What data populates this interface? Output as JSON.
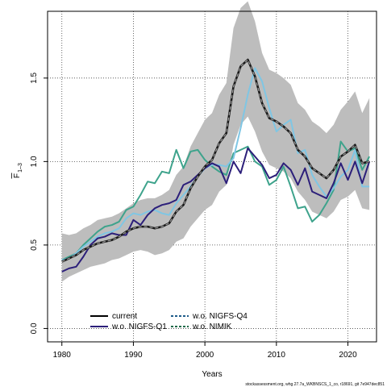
{
  "chart_data": {
    "type": "line",
    "xlabel": "Years",
    "ylabel_main": "F",
    "ylabel_sub": "1–3",
    "xlim": [
      1978,
      2024
    ],
    "ylim": [
      -0.08,
      1.9
    ],
    "x_ticks": [
      1980,
      1990,
      2000,
      2010,
      2020
    ],
    "y_ticks": [
      0.0,
      0.5,
      1.0,
      1.5
    ],
    "y_tick_labels": [
      "0.0",
      "0.5",
      "1.0",
      "1.5"
    ],
    "grid": "dotted",
    "legend": {
      "placement": "bottom-left",
      "entries": [
        {
          "key": "current",
          "label": "current",
          "color": "#000000",
          "dash": "solid"
        },
        {
          "key": "q1",
          "label": "w.o. NIGFS-Q1",
          "color": "#2c1f7a",
          "dash": "solid"
        },
        {
          "key": "q4",
          "label": "w.o. NIGFS-Q4",
          "color": "#1f5d8a",
          "dash": "dashed"
        },
        {
          "key": "nimik",
          "label": "w.o. NIMIK",
          "color": "#1f6a4a",
          "dash": "dashed"
        }
      ]
    },
    "x": [
      1980,
      1981,
      1982,
      1983,
      1984,
      1985,
      1986,
      1987,
      1988,
      1989,
      1990,
      1991,
      1992,
      1993,
      1994,
      1995,
      1996,
      1997,
      1998,
      1999,
      2000,
      2001,
      2002,
      2003,
      2004,
      2005,
      2006,
      2007,
      2008,
      2009,
      2010,
      2011,
      2012,
      2013,
      2014,
      2015,
      2016,
      2017,
      2018,
      2019,
      2020,
      2021,
      2022,
      2023
    ],
    "series": [
      {
        "name": "current",
        "color": "#1a1a1a",
        "dash": "dashed-thick",
        "values": [
          0.4,
          0.42,
          0.44,
          0.47,
          0.49,
          0.51,
          0.52,
          0.53,
          0.55,
          0.58,
          0.6,
          0.61,
          0.61,
          0.6,
          0.61,
          0.63,
          0.7,
          0.74,
          0.84,
          0.91,
          0.97,
          1.01,
          1.11,
          1.17,
          1.45,
          1.57,
          1.61,
          1.51,
          1.35,
          1.26,
          1.24,
          1.21,
          1.17,
          1.07,
          1.03,
          0.96,
          0.93,
          0.9,
          0.95,
          1.03,
          1.06,
          1.1,
          0.99,
          1.0
        ]
      },
      {
        "name": "w.o. NIGFS-Q1",
        "color": "#2c1f7a",
        "dash": "solid",
        "values": [
          0.34,
          0.36,
          0.37,
          0.43,
          0.5,
          0.54,
          0.55,
          0.57,
          0.56,
          0.56,
          0.65,
          0.62,
          0.68,
          0.72,
          0.74,
          0.75,
          0.77,
          0.86,
          0.88,
          0.92,
          0.96,
          0.99,
          0.97,
          0.87,
          1.0,
          0.93,
          1.08,
          1.03,
          0.98,
          0.9,
          0.92,
          0.99,
          0.95,
          0.86,
          0.96,
          0.82,
          0.8,
          0.78,
          0.87,
          0.99,
          0.89,
          1.0,
          0.87,
          1.0
        ]
      },
      {
        "name": "w.o. NIGFS-Q4",
        "color": "#7fc6e4",
        "dash": "solid",
        "values": [
          0.41,
          0.42,
          0.45,
          0.49,
          0.52,
          0.55,
          0.57,
          0.58,
          0.6,
          0.66,
          0.69,
          0.68,
          0.7,
          0.71,
          0.69,
          0.68,
          0.75,
          0.8,
          0.85,
          0.91,
          0.96,
          0.98,
          0.98,
          0.97,
          1.02,
          1.2,
          1.4,
          1.56,
          1.48,
          1.32,
          1.18,
          1.22,
          1.25,
          1.05,
          1.07,
          0.92,
          0.85,
          0.79,
          0.84,
          0.91,
          0.95,
          1.07,
          0.85,
          0.85
        ]
      },
      {
        "name": "w.o. NIMIK",
        "color": "#3ea38c",
        "dash": "solid",
        "values": [
          0.41,
          0.43,
          0.45,
          0.5,
          0.54,
          0.58,
          0.61,
          0.62,
          0.64,
          0.71,
          0.73,
          0.8,
          0.88,
          0.87,
          0.94,
          0.93,
          1.07,
          0.96,
          1.06,
          1.07,
          1.01,
          0.97,
          0.94,
          0.92,
          1.05,
          1.07,
          1.09,
          1.0,
          0.97,
          0.86,
          0.89,
          0.97,
          0.85,
          0.72,
          0.73,
          0.64,
          0.68,
          0.75,
          0.83,
          1.12,
          1.06,
          1.08,
          0.95,
          1.03
        ]
      }
    ],
    "band": {
      "upper": [
        0.57,
        0.56,
        0.57,
        0.6,
        0.62,
        0.65,
        0.66,
        0.67,
        0.69,
        0.72,
        0.75,
        0.77,
        0.78,
        0.78,
        0.8,
        0.83,
        0.92,
        0.97,
        1.09,
        1.17,
        1.25,
        1.29,
        1.4,
        1.47,
        1.8,
        1.92,
        1.96,
        1.84,
        1.65,
        1.55,
        1.53,
        1.5,
        1.46,
        1.35,
        1.31,
        1.24,
        1.21,
        1.17,
        1.22,
        1.31,
        1.36,
        1.42,
        1.29,
        1.38
      ],
      "lower": [
        0.28,
        0.31,
        0.33,
        0.35,
        0.37,
        0.38,
        0.39,
        0.41,
        0.42,
        0.44,
        0.46,
        0.47,
        0.46,
        0.44,
        0.45,
        0.47,
        0.52,
        0.54,
        0.61,
        0.66,
        0.71,
        0.74,
        0.82,
        0.86,
        1.1,
        1.22,
        1.27,
        1.18,
        1.06,
        0.98,
        0.96,
        0.94,
        0.9,
        0.82,
        0.77,
        0.7,
        0.68,
        0.66,
        0.7,
        0.77,
        0.79,
        0.83,
        0.72,
        0.71
      ],
      "color": "#bdbdbd"
    }
  },
  "footer": "stockassessment.org, whg.27.7a_WKBNSCS_1_co, r18691, git 7e947dec851"
}
